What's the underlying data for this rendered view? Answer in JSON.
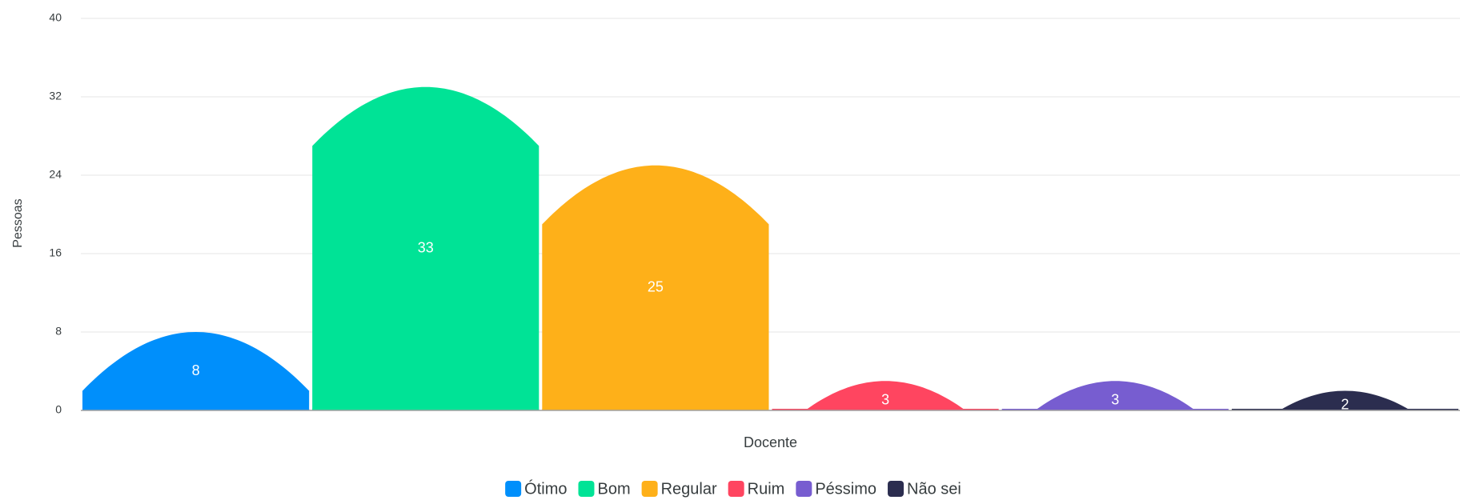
{
  "chart_data": {
    "type": "bar",
    "y_label": "Pessoas",
    "categories": [
      "Docente"
    ],
    "series": [
      {
        "name": "Ótimo",
        "color": "#008ffb",
        "values": [
          8
        ]
      },
      {
        "name": "Bom",
        "color": "#00e396",
        "values": [
          33
        ]
      },
      {
        "name": "Regular",
        "color": "#feb019",
        "values": [
          25
        ]
      },
      {
        "name": "Ruim",
        "color": "#ff4560",
        "values": [
          3
        ]
      },
      {
        "name": "Péssimo",
        "color": "#775dd0",
        "values": [
          3
        ]
      },
      {
        "name": "Não sei",
        "color": "#2b2d4f",
        "values": [
          2
        ]
      }
    ],
    "ylim": [
      0,
      40
    ],
    "yticks": [
      0,
      8,
      16,
      24,
      32,
      40
    ],
    "grid": true,
    "legend": "bottom"
  }
}
